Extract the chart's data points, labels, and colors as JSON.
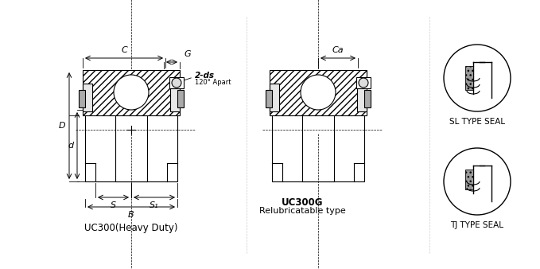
{
  "bg_color": "#ffffff",
  "line_color": "#000000",
  "hatch_color": "#000000",
  "title_uc300": "UC300(Heavy Duty)",
  "title_uc300g": "UC300G",
  "subtitle_uc300g": "Relubricatable type",
  "label_C": "C",
  "label_G": "G",
  "label_2ds": "2-ds",
  "label_120apart": "120° Apart",
  "label_D": "D",
  "label_d": "d",
  "label_S": "S",
  "label_S1": "S₁",
  "label_B": "B",
  "label_Ca": "Ca",
  "label_sl": "SL TYPE SEAL",
  "label_tj": "TJ TYPE SEAL",
  "fig_width": 6.79,
  "fig_height": 3.38
}
